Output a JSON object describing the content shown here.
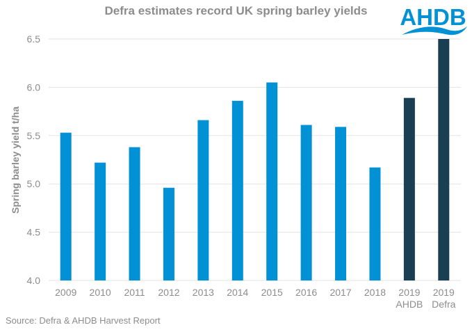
{
  "chart_data": {
    "type": "bar",
    "title": "Defra estimates record UK spring barley yields",
    "xlabel": "",
    "ylabel": "Spring barley yield t/ha",
    "ylim": [
      4.0,
      6.5
    ],
    "yticks": [
      "4.0",
      "4.5",
      "5.0",
      "5.5",
      "6.0",
      "6.5"
    ],
    "grid": true,
    "categories": [
      [
        "2009"
      ],
      [
        "2010"
      ],
      [
        "2011"
      ],
      [
        "2012"
      ],
      [
        "2013"
      ],
      [
        "2014"
      ],
      [
        "2015"
      ],
      [
        "2016"
      ],
      [
        "2017"
      ],
      [
        "2018"
      ],
      [
        "2019",
        "AHDB"
      ],
      [
        "2019",
        "Defra"
      ]
    ],
    "values": [
      5.53,
      5.22,
      5.38,
      4.96,
      5.66,
      5.86,
      6.05,
      5.61,
      5.59,
      5.17,
      5.89,
      6.5
    ],
    "bar_colors": [
      "#0391d6",
      "#0391d6",
      "#0391d6",
      "#0391d6",
      "#0391d6",
      "#0391d6",
      "#0391d6",
      "#0391d6",
      "#0391d6",
      "#0391d6",
      "#1b3f52",
      "#1b3f52"
    ]
  },
  "logo": {
    "text": "AHDB",
    "color": "#0391d6"
  },
  "source": "Source: Defra & AHDB Harvest Report"
}
